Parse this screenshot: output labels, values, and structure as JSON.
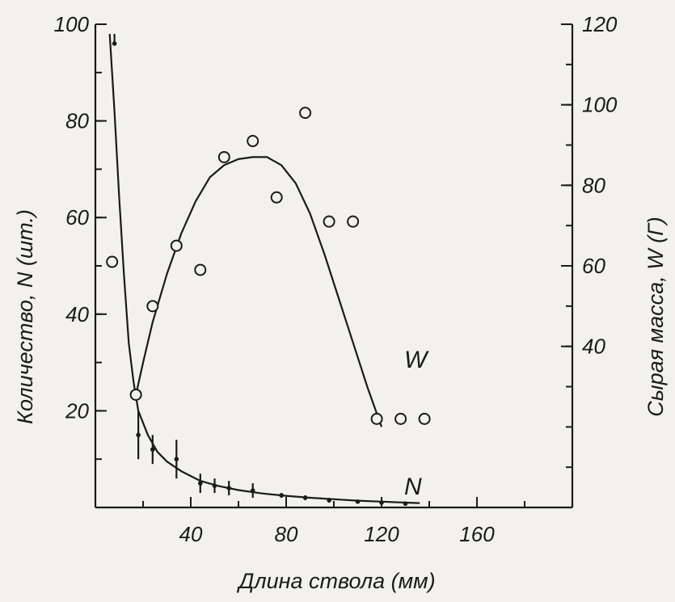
{
  "chart_data": {
    "type": "scatter",
    "xlabel": "Длина ствола (мм)",
    "ylabel_left": "Количество, N (шт.)",
    "ylabel_right": "Сырая масса, W (Г)",
    "xlim": [
      0,
      200
    ],
    "ylim_left": [
      0,
      100
    ],
    "ylim_right": [
      0,
      120
    ],
    "x_ticks": [
      40,
      80,
      120,
      160
    ],
    "y_ticks_left": [
      20,
      40,
      60,
      80,
      100
    ],
    "y_ticks_right": [
      40,
      60,
      80,
      100,
      120
    ],
    "grid": false,
    "ink_color": "#1a1a1a",
    "series": [
      {
        "name": "W",
        "axis": "right",
        "marker": "open-circle",
        "points": [
          {
            "x": 7,
            "y": 61
          },
          {
            "x": 17,
            "y": 28
          },
          {
            "x": 24,
            "y": 50
          },
          {
            "x": 34,
            "y": 65
          },
          {
            "x": 44,
            "y": 59
          },
          {
            "x": 54,
            "y": 87
          },
          {
            "x": 66,
            "y": 91
          },
          {
            "x": 76,
            "y": 77
          },
          {
            "x": 88,
            "y": 98
          },
          {
            "x": 98,
            "y": 71
          },
          {
            "x": 108,
            "y": 71
          },
          {
            "x": 118,
            "y": 22
          },
          {
            "x": 128,
            "y": 22
          },
          {
            "x": 138,
            "y": 22
          }
        ],
        "fit_curve": [
          [
            17,
            28
          ],
          [
            20,
            36
          ],
          [
            24,
            46
          ],
          [
            30,
            58
          ],
          [
            36,
            68
          ],
          [
            42,
            76
          ],
          [
            48,
            82
          ],
          [
            54,
            85
          ],
          [
            60,
            86.5
          ],
          [
            66,
            87
          ],
          [
            72,
            87
          ],
          [
            78,
            85
          ],
          [
            84,
            80.5
          ],
          [
            90,
            73
          ],
          [
            96,
            63
          ],
          [
            102,
            52
          ],
          [
            108,
            41
          ],
          [
            114,
            30
          ],
          [
            120,
            20
          ]
        ]
      },
      {
        "name": "N",
        "axis": "left",
        "marker": "tick",
        "points": [
          {
            "x": 8,
            "y": 96,
            "err_low": 0,
            "err_high": 2
          },
          {
            "x": 18,
            "y": 15,
            "err_low": 5,
            "err_high": 5
          },
          {
            "x": 24,
            "y": 12,
            "err_low": 3,
            "err_high": 3
          },
          {
            "x": 34,
            "y": 10,
            "err_low": 4,
            "err_high": 4
          },
          {
            "x": 44,
            "y": 5,
            "err_low": 2,
            "err_high": 2
          },
          {
            "x": 50,
            "y": 4.5,
            "err_low": 1.5,
            "err_high": 1.5
          },
          {
            "x": 56,
            "y": 4,
            "err_low": 1.5,
            "err_high": 1.5
          },
          {
            "x": 66,
            "y": 3.5,
            "err_low": 1.5,
            "err_high": 1.5
          },
          {
            "x": 78,
            "y": 2.5,
            "err_low": 0.5,
            "err_high": 0.5
          },
          {
            "x": 88,
            "y": 2,
            "err_low": 0.5,
            "err_high": 0.5
          },
          {
            "x": 98,
            "y": 1.5,
            "err_low": 0.5,
            "err_high": 0.5
          },
          {
            "x": 110,
            "y": 1.2,
            "err_low": 0.3,
            "err_high": 0.3
          },
          {
            "x": 120,
            "y": 1,
            "err_low": 0.3,
            "err_high": 0.3
          },
          {
            "x": 130,
            "y": 0.8,
            "err_low": 0.3,
            "err_high": 0.3
          }
        ],
        "fit_curve": [
          [
            6,
            98
          ],
          [
            8,
            82
          ],
          [
            10,
            64
          ],
          [
            12,
            48
          ],
          [
            14,
            34
          ],
          [
            16,
            26
          ],
          [
            18,
            20
          ],
          [
            22,
            15
          ],
          [
            26,
            11.5
          ],
          [
            30,
            9.5
          ],
          [
            36,
            7.5
          ],
          [
            44,
            5.5
          ],
          [
            52,
            4.4
          ],
          [
            60,
            3.6
          ],
          [
            70,
            2.9
          ],
          [
            80,
            2.4
          ],
          [
            90,
            2.0
          ],
          [
            100,
            1.7
          ],
          [
            110,
            1.4
          ],
          [
            120,
            1.2
          ],
          [
            130,
            1.0
          ],
          [
            136,
            0.9
          ]
        ]
      }
    ]
  }
}
